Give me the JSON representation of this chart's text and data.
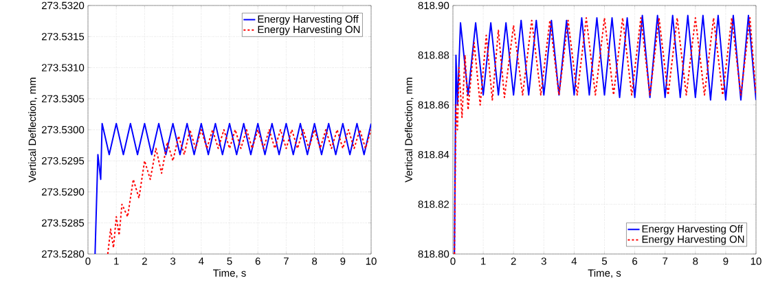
{
  "chart_data": [
    {
      "type": "line",
      "xlabel": "Time, s",
      "ylabel": "Vertical Deflection, mm",
      "xlim": [
        0,
        10
      ],
      "xticks": [
        0,
        1,
        2,
        3,
        4,
        5,
        6,
        7,
        8,
        9,
        10
      ],
      "ylim": [
        273.528,
        273.532
      ],
      "yticks": [
        {
          "value": 273.528,
          "label": "273.5280"
        },
        {
          "value": 273.5285,
          "label": "273.5285"
        },
        {
          "value": 273.529,
          "label": "273.5290"
        },
        {
          "value": 273.5295,
          "label": "273.5295"
        },
        {
          "value": 273.53,
          "label": "273.5300"
        },
        {
          "value": 273.5305,
          "label": "273.5305"
        },
        {
          "value": 273.531,
          "label": "273.5310"
        },
        {
          "value": 273.5315,
          "label": "273.5315"
        },
        {
          "value": 273.532,
          "label": "273.5320"
        }
      ],
      "grid": true,
      "legend": "top right",
      "marker": "none",
      "series": [
        {
          "name": "Energy Harvesting Off",
          "color": "#0000ff",
          "line_style": "solid",
          "x": [
            0.25,
            0.35,
            0.45,
            0.5,
            0.75,
            1.0,
            1.25,
            1.5,
            1.75,
            2.0,
            2.25,
            2.5,
            2.75,
            3.0,
            3.25,
            3.5,
            3.75,
            4.0,
            4.25,
            4.5,
            4.75,
            5.0,
            5.25,
            5.5,
            5.75,
            6.0,
            6.25,
            6.5,
            6.75,
            7.0,
            7.25,
            7.5,
            7.75,
            8.0,
            8.25,
            8.5,
            8.75,
            9.0,
            9.25,
            9.5,
            9.75,
            10.0
          ],
          "values": [
            273.528,
            273.5296,
            273.5292,
            273.5301,
            273.5296,
            273.5301,
            273.5296,
            273.5301,
            273.5296,
            273.5301,
            273.5296,
            273.5301,
            273.5296,
            273.5301,
            273.5296,
            273.5301,
            273.5296,
            273.5301,
            273.5296,
            273.5301,
            273.5296,
            273.5301,
            273.5296,
            273.5301,
            273.5296,
            273.5301,
            273.5296,
            273.5301,
            273.5296,
            273.5301,
            273.5296,
            273.5301,
            273.5296,
            273.5301,
            273.5296,
            273.5301,
            273.5296,
            273.5301,
            273.5296,
            273.5301,
            273.5296,
            273.5301
          ]
        },
        {
          "name": "Energy Harvesting ON",
          "color": "#ff0000",
          "line_style": "dashed",
          "x": [
            0.7,
            0.8,
            0.9,
            1.0,
            1.1,
            1.2,
            1.4,
            1.6,
            1.8,
            2.0,
            2.2,
            2.4,
            2.6,
            2.8,
            3.0,
            3.2,
            3.4,
            3.6,
            3.8,
            4.0,
            4.2,
            4.4,
            4.6,
            4.8,
            5.0,
            5.2,
            5.4,
            5.6,
            5.8,
            6.0,
            6.2,
            6.4,
            6.6,
            6.8,
            7.0,
            7.2,
            7.4,
            7.6,
            7.8,
            8.0,
            8.2,
            8.4,
            8.6,
            8.8,
            9.0,
            9.2,
            9.4,
            9.6,
            9.8,
            10.0
          ],
          "values": [
            273.528,
            273.5284,
            273.5281,
            273.5286,
            273.5283,
            273.5288,
            273.5286,
            273.5292,
            273.5289,
            273.5295,
            273.5292,
            273.5297,
            273.5293,
            273.5298,
            273.5295,
            273.5299,
            273.5296,
            273.53,
            273.5297,
            273.53,
            273.5297,
            273.53,
            273.5297,
            273.53,
            273.5297,
            273.53,
            273.5297,
            273.53,
            273.5297,
            273.53,
            273.5297,
            273.53,
            273.5297,
            273.53,
            273.5297,
            273.53,
            273.5297,
            273.53,
            273.5297,
            273.53,
            273.5297,
            273.53,
            273.5297,
            273.53,
            273.5297,
            273.53,
            273.5297,
            273.53,
            273.5297,
            273.53
          ]
        }
      ]
    },
    {
      "type": "line",
      "xlabel": "Time, s",
      "ylabel": "Vertical Deflection, mm",
      "xlim": [
        0,
        10
      ],
      "xticks": [
        0,
        1,
        2,
        3,
        4,
        5,
        6,
        7,
        8,
        9,
        10
      ],
      "ylim": [
        818.8,
        818.9
      ],
      "yticks": [
        {
          "value": 818.8,
          "label": "818.80"
        },
        {
          "value": 818.82,
          "label": "818.82"
        },
        {
          "value": 818.84,
          "label": "818.84"
        },
        {
          "value": 818.86,
          "label": "818.86"
        },
        {
          "value": 818.88,
          "label": "818.88"
        },
        {
          "value": 818.9,
          "label": "818.90"
        }
      ],
      "grid": true,
      "legend": "bottom right",
      "marker": "none",
      "series": [
        {
          "name": "Energy Harvesting Off",
          "color": "#0000ff",
          "line_style": "solid",
          "x": [
            0.05,
            0.1,
            0.15,
            0.25,
            0.5,
            0.75,
            1.0,
            1.25,
            1.5,
            1.75,
            2.0,
            2.25,
            2.5,
            2.75,
            3.0,
            3.25,
            3.5,
            3.75,
            4.0,
            4.25,
            4.5,
            4.75,
            5.0,
            5.25,
            5.5,
            5.75,
            6.0,
            6.25,
            6.5,
            6.75,
            7.0,
            7.25,
            7.5,
            7.75,
            8.0,
            8.25,
            8.5,
            8.75,
            9.0,
            9.25,
            9.5,
            9.75,
            10.0
          ],
          "values": [
            818.8,
            818.88,
            818.86,
            818.893,
            818.864,
            818.893,
            818.864,
            818.893,
            818.864,
            818.893,
            818.864,
            818.894,
            818.864,
            818.894,
            818.864,
            818.894,
            818.864,
            818.894,
            818.864,
            818.895,
            818.864,
            818.895,
            818.864,
            818.895,
            818.863,
            818.895,
            818.863,
            818.896,
            818.863,
            818.896,
            818.863,
            818.896,
            818.863,
            818.896,
            818.863,
            818.896,
            818.862,
            818.896,
            818.862,
            818.896,
            818.862,
            818.896,
            818.862
          ]
        },
        {
          "name": "Energy Harvesting ON",
          "color": "#ff0000",
          "line_style": "dashed",
          "x": [
            0.05,
            0.1,
            0.15,
            0.2,
            0.3,
            0.4,
            0.5,
            0.7,
            0.9,
            1.1,
            1.3,
            1.5,
            1.7,
            2.0,
            2.3,
            2.6,
            2.9,
            3.2,
            3.5,
            3.8,
            4.1,
            4.4,
            4.7,
            5.0,
            5.3,
            5.6,
            5.9,
            6.2,
            6.5,
            6.8,
            7.1,
            7.4,
            7.7,
            8.0,
            8.3,
            8.6,
            8.9,
            9.2,
            9.5,
            9.8,
            10.0
          ],
          "values": [
            818.8,
            818.86,
            818.85,
            818.875,
            818.855,
            818.88,
            818.858,
            818.885,
            818.86,
            818.888,
            818.862,
            818.89,
            818.863,
            818.892,
            818.864,
            818.894,
            818.864,
            818.894,
            818.864,
            818.894,
            818.864,
            818.895,
            818.864,
            818.895,
            818.864,
            818.895,
            818.864,
            818.895,
            818.864,
            818.895,
            818.864,
            818.895,
            818.864,
            818.895,
            818.864,
            818.895,
            818.864,
            818.895,
            818.864,
            818.895,
            818.864
          ]
        }
      ]
    }
  ]
}
